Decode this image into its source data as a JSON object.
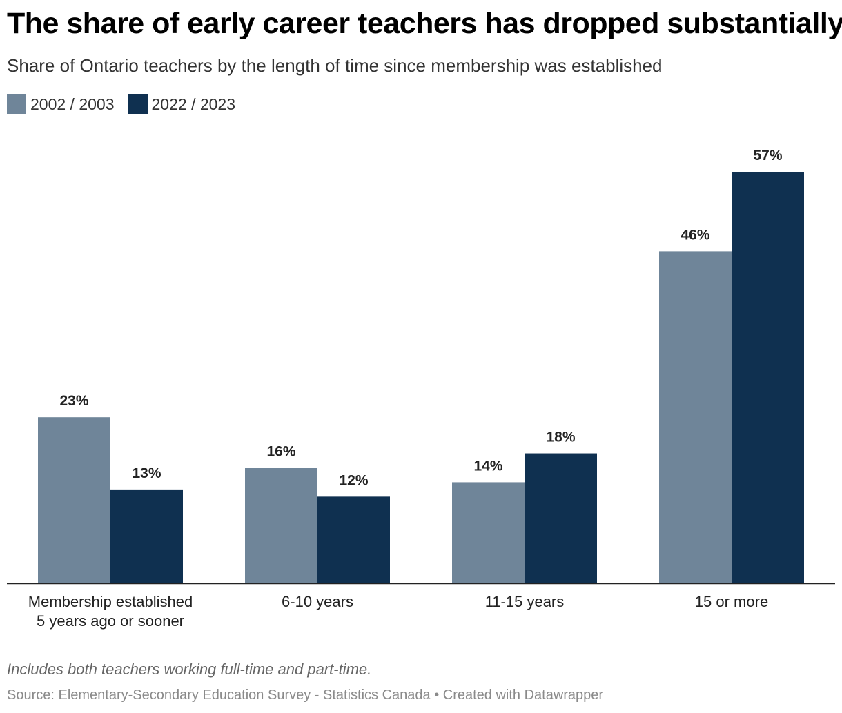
{
  "header": {
    "title": "The share of early career teachers has dropped substantially",
    "subtitle": "Share of Ontario teachers by the length of time since membership was established"
  },
  "footer": {
    "notes": "Includes both teachers working full-time and part-time.",
    "source": "Source: Elementary-Secondary Education Survey - Statistics Canada • Created with Datawrapper"
  },
  "chart_data": {
    "type": "bar",
    "categories": [
      [
        "Membership established",
        "5 years ago or sooner"
      ],
      [
        "6-10 years"
      ],
      [
        "11-15 years"
      ],
      [
        "15 or more"
      ]
    ],
    "series": [
      {
        "name": "2002 / 2003",
        "color": "#6f8599",
        "values": [
          23,
          16,
          14,
          46
        ]
      },
      {
        "name": "2022 / 2023",
        "color": "#0f3050",
        "values": [
          13,
          12,
          18,
          57
        ]
      }
    ],
    "value_suffix": "%",
    "ylim": [
      0,
      60
    ],
    "grid": false,
    "legend_position": "top-left"
  }
}
